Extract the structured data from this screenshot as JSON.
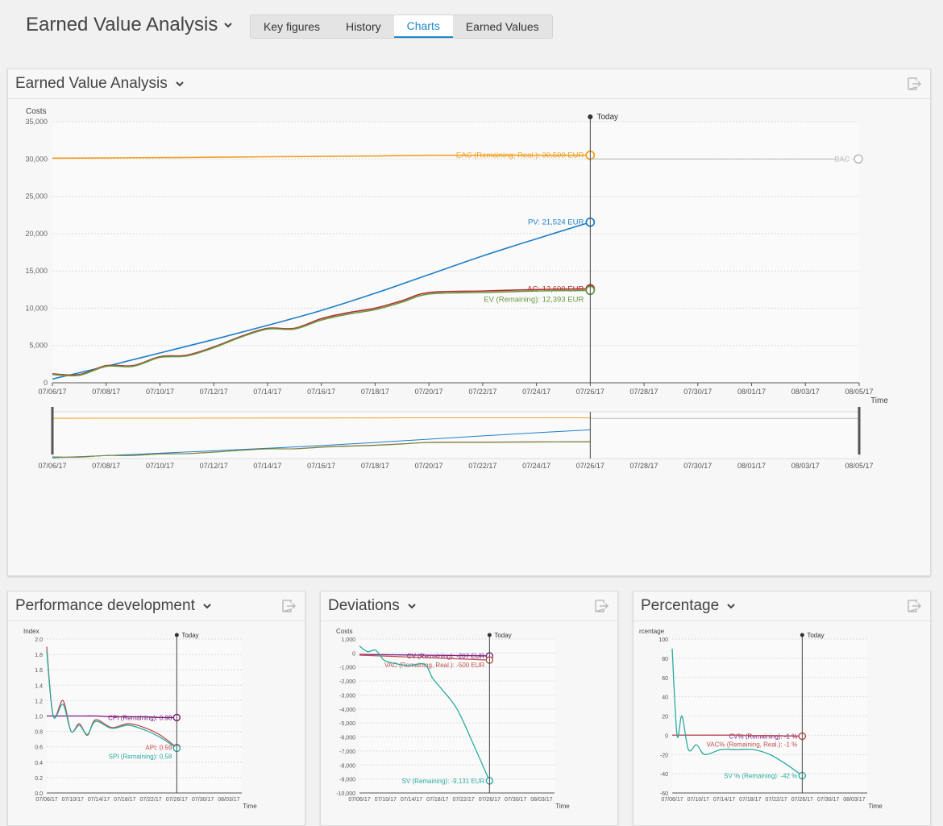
{
  "header": {
    "title": "Earned Value Analysis",
    "tabs": [
      {
        "label": "Key figures",
        "active": false
      },
      {
        "label": "History",
        "active": false
      },
      {
        "label": "Charts",
        "active": true
      },
      {
        "label": "Earned Values",
        "active": false
      }
    ]
  },
  "icons": {
    "title_dropdown": "chevron-down-icon",
    "export": "export-icon"
  },
  "colors": {
    "eac": "#f0a020",
    "pv": "#1e7fc8",
    "ac": "#b03030",
    "ev": "#6a9a40",
    "bac": "#b8b8b8",
    "cpi": "#7a1a7a",
    "spi": "#2aaaa0",
    "api": "#c05050",
    "today": "#333333"
  },
  "main_panel": {
    "title": "Earned Value Analysis"
  },
  "panels": {
    "performance": {
      "title": "Performance development"
    },
    "deviations": {
      "title": "Deviations"
    },
    "percentage": {
      "title": "Percentage"
    }
  },
  "chart_data": [
    {
      "type": "line",
      "title": "Earned Value Analysis",
      "ylabel": "Costs",
      "xlabel": "Time",
      "ylim": [
        0,
        35000
      ],
      "yticks": [
        "0",
        "5,000",
        "10,000",
        "15,000",
        "20,000",
        "25,000",
        "30,000",
        "35,000"
      ],
      "xticks": [
        "07/06/17",
        "07/08/17",
        "07/10/17",
        "07/12/17",
        "07/14/17",
        "07/16/17",
        "07/18/17",
        "07/20/17",
        "07/22/17",
        "07/24/17",
        "07/26/17",
        "07/28/17",
        "07/30/17",
        "08/01/17",
        "08/03/17",
        "08/05/17"
      ],
      "today_label": "Today",
      "today_x": "07/26/17",
      "grid": true,
      "series": [
        {
          "name": "EAC (Remaining; Real.)",
          "label": "EAC (Remaining; Real.): 30,500 EUR",
          "x": [
            "07/06/17",
            "07/11/17",
            "07/14/17",
            "07/18/17",
            "07/20/17",
            "07/23/17",
            "07/26/17"
          ],
          "values": [
            30100,
            30200,
            30300,
            30400,
            30500,
            30500,
            30500
          ]
        },
        {
          "name": "BAC",
          "label": "BAC",
          "x": [
            "07/06/17",
            "08/05/17"
          ],
          "values": [
            30000,
            30000
          ]
        },
        {
          "name": "PV",
          "label": "PV: 21,524 EUR",
          "x": [
            "07/06/17",
            "07/08/17",
            "07/10/17",
            "07/12/17",
            "07/14/17",
            "07/16/17",
            "07/18/17",
            "07/20/17",
            "07/22/17",
            "07/24/17",
            "07/26/17"
          ],
          "values": [
            500,
            2200,
            4000,
            5800,
            7700,
            9700,
            12000,
            14500,
            17000,
            19300,
            21524
          ]
        },
        {
          "name": "AC",
          "label": "AC: 12,600 EUR",
          "x": [
            "07/06/17",
            "07/07/17",
            "07/08/17",
            "07/09/17",
            "07/10/17",
            "07/11/17",
            "07/12/17",
            "07/13/17",
            "07/14/17",
            "07/15/17",
            "07/16/17",
            "07/17/17",
            "07/18/17",
            "07/19/17",
            "07/20/17",
            "07/22/17",
            "07/24/17",
            "07/26/17"
          ],
          "values": [
            1200,
            1100,
            2300,
            2300,
            3500,
            3700,
            4800,
            6200,
            7300,
            7300,
            8600,
            9400,
            10000,
            11000,
            12100,
            12300,
            12500,
            12600
          ]
        },
        {
          "name": "EV (Remaining)",
          "label": "EV (Remaining): 12,393 EUR",
          "x": [
            "07/06/17",
            "07/07/17",
            "07/08/17",
            "07/09/17",
            "07/10/17",
            "07/11/17",
            "07/12/17",
            "07/13/17",
            "07/14/17",
            "07/15/17",
            "07/16/17",
            "07/17/17",
            "07/18/17",
            "07/19/17",
            "07/20/17",
            "07/22/17",
            "07/24/17",
            "07/26/17"
          ],
          "values": [
            1100,
            1000,
            2200,
            2200,
            3400,
            3600,
            4700,
            6100,
            7200,
            7200,
            8400,
            9200,
            9800,
            10800,
            11900,
            12100,
            12300,
            12393
          ]
        }
      ],
      "navigator_xticks": [
        "07/06/17",
        "07/08/17",
        "07/10/17",
        "07/12/17",
        "07/14/17",
        "07/16/17",
        "07/18/17",
        "07/20/17",
        "07/22/17",
        "07/24/17",
        "07/26/17",
        "07/28/17",
        "07/30/17",
        "08/01/17",
        "08/03/17",
        "08/05/17"
      ]
    },
    {
      "type": "line",
      "title": "Performance development",
      "ylabel": "Index",
      "xlabel": "Time",
      "ylim": [
        0,
        2.0
      ],
      "yticks": [
        "0.0",
        "0.2",
        "0.4",
        "0.6",
        "0.8",
        "1.0",
        "1.2",
        "1.4",
        "1.6",
        "1.8",
        "2.0"
      ],
      "xticks": [
        "07/06/17",
        "07/10/17",
        "07/14/17",
        "07/18/17",
        "07/22/17",
        "07/26/17",
        "07/30/17",
        "08/03/17"
      ],
      "today_label": "Today",
      "series": [
        {
          "name": "CPI (Remaining)",
          "label": "CPI (Remaining): 0.98",
          "x": [
            0,
            1,
            2,
            3,
            4,
            5,
            6,
            7,
            8
          ],
          "values": [
            1.0,
            1.0,
            1.0,
            1.0,
            0.99,
            0.99,
            0.99,
            0.98,
            0.98
          ]
        },
        {
          "name": "API",
          "label": "API: 0.59",
          "x": [
            0,
            0.4,
            1,
            1.5,
            2,
            2.5,
            3,
            4,
            5,
            6,
            7,
            8
          ],
          "values": [
            1.9,
            1.0,
            1.2,
            0.8,
            0.9,
            0.75,
            0.95,
            0.85,
            0.9,
            0.85,
            0.75,
            0.59
          ]
        },
        {
          "name": "SPI (Remaining)",
          "label": "SPI (Remaining): 0.58",
          "x": [
            0,
            0.4,
            1,
            1.5,
            2,
            2.5,
            3,
            4,
            5,
            6,
            7,
            8
          ],
          "values": [
            1.85,
            1.0,
            1.15,
            0.8,
            0.88,
            0.76,
            0.93,
            0.84,
            0.88,
            0.82,
            0.72,
            0.58
          ]
        }
      ]
    },
    {
      "type": "line",
      "title": "Deviations",
      "ylabel": "Costs",
      "xlabel": "Time",
      "ylim": [
        -10000,
        1000
      ],
      "yticks": [
        "-10,000",
        "-9,000",
        "-8,000",
        "-7,000",
        "-6,000",
        "-5,000",
        "-4,000",
        "-3,000",
        "-2,000",
        "-1,000",
        "0",
        "1,000"
      ],
      "xticks": [
        "07/06/17",
        "07/10/17",
        "07/14/17",
        "07/18/17",
        "07/22/17",
        "07/26/17",
        "07/30/17",
        "08/03/17"
      ],
      "today_label": "Today",
      "series": [
        {
          "name": "CV (Remaining)",
          "label": "CV (Remaining): -207 EUR",
          "x": [
            0,
            8
          ],
          "values": [
            -100,
            -207
          ]
        },
        {
          "name": "VAC (Remaining, Real.)",
          "label": "VAC (Remaining, Real.): -500 EUR",
          "x": [
            0,
            8
          ],
          "values": [
            -150,
            -500
          ]
        },
        {
          "name": "SV (Remaining)",
          "label": "SV (Remaining): -9,131 EUR",
          "x": [
            0,
            0.5,
            1,
            1.5,
            2,
            3,
            4,
            4.5,
            5,
            6,
            7,
            8
          ],
          "values": [
            500,
            100,
            200,
            -500,
            -700,
            -900,
            -800,
            -1800,
            -2500,
            -4000,
            -6500,
            -9131
          ]
        }
      ]
    },
    {
      "type": "line",
      "title": "Percentage",
      "ylabel": "rcentage",
      "xlabel": "Time",
      "ylim": [
        -60,
        100
      ],
      "yticks": [
        "-60",
        "-40",
        "-20",
        "0",
        "20",
        "40",
        "60",
        "80",
        "100"
      ],
      "xticks": [
        "07/06/17",
        "07/10/17",
        "07/14/17",
        "07/18/17",
        "07/22/17",
        "07/26/17",
        "07/30/17",
        "08/03/17"
      ],
      "today_label": "Today",
      "series": [
        {
          "name": "CV%",
          "label": "CV% (Remaining): -1 %",
          "x": [
            0,
            4,
            8
          ],
          "values": [
            0,
            0,
            -1
          ]
        },
        {
          "name": "VAC%",
          "label": "VAC% (Remaining, Real.): -1 %",
          "x": [
            0,
            4,
            8
          ],
          "values": [
            0,
            0,
            -1
          ]
        },
        {
          "name": "SV %",
          "label": "SV % (Remaining): -42 %",
          "x": [
            0,
            0.3,
            0.6,
            1,
            1.5,
            2,
            3,
            4,
            5,
            6,
            7,
            8
          ],
          "values": [
            90,
            0,
            20,
            -15,
            -10,
            -20,
            -15,
            -15,
            -15,
            -20,
            -30,
            -42
          ]
        }
      ]
    }
  ]
}
